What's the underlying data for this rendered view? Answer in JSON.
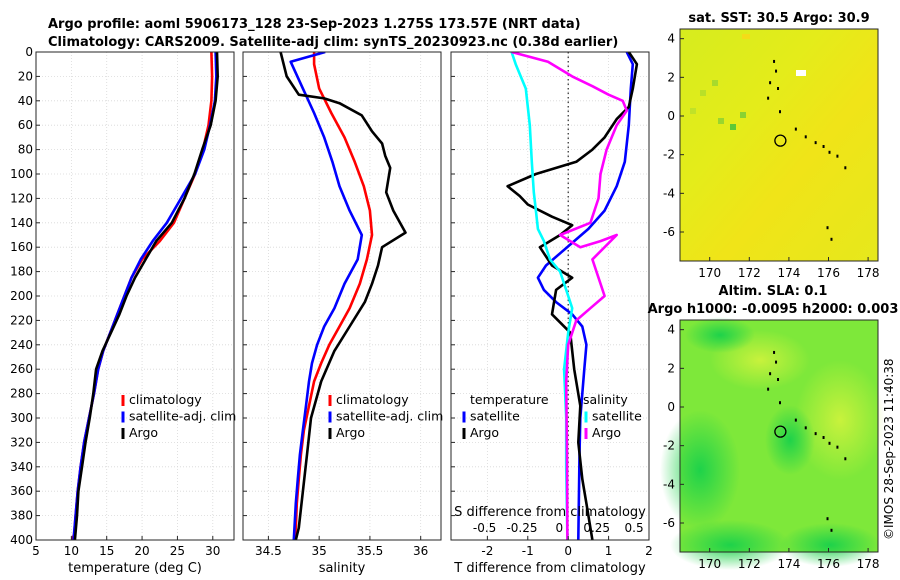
{
  "title_line1": "Argo profile: aoml 5906173_128 23-Sep-2023 1.275S 173.57E (NRT data)",
  "title_line2": "Climatology: CARS2009. Satellite-adj clim: synTS_20230923.nc (0.38d earlier)",
  "colors": {
    "climatology": "#ff0000",
    "satellite": "#0000ff",
    "argo": "#000000",
    "temp_diff": "#00ffff",
    "sal_diff": "#ff00ff"
  },
  "chart_data": [
    {
      "type": "line",
      "title": "",
      "xlabel": "temperature (deg C)",
      "ylabel": "",
      "xlim": [
        5,
        33
      ],
      "ylim": [
        400,
        0
      ],
      "xticks": [
        5,
        10,
        15,
        20,
        25,
        30
      ],
      "yticks": [
        0,
        20,
        40,
        60,
        80,
        100,
        120,
        140,
        160,
        180,
        200,
        220,
        240,
        260,
        280,
        300,
        320,
        340,
        360,
        380,
        400
      ],
      "legend": [
        "climatology",
        "satellite-adj. clim",
        "Argo"
      ],
      "series": [
        {
          "name": "climatology",
          "color": "#ff0000",
          "x": [
            29.8,
            29.9,
            29.8,
            29.4,
            28.6,
            27.5,
            26.0,
            24.5,
            22.5,
            20.0,
            18.5,
            17.5,
            16.5,
            15.5,
            14.5,
            13.8,
            13.2,
            12.5,
            11.8,
            11.3,
            10.9,
            10.6,
            10.4,
            10.1
          ],
          "y": [
            0,
            20,
            40,
            60,
            80,
            100,
            120,
            140,
            155,
            170,
            185,
            200,
            215,
            230,
            245,
            260,
            280,
            300,
            320,
            340,
            360,
            380,
            395,
            400
          ]
        },
        {
          "name": "satellite-adj. clim",
          "color": "#0000ff",
          "x": [
            30.4,
            30.5,
            30.3,
            29.6,
            28.8,
            27.5,
            25.5,
            23.5,
            21.5,
            19.8,
            18.5,
            17.5,
            16.5,
            15.5,
            14.5,
            13.8,
            13.2,
            12.5,
            11.8,
            11.3,
            10.9,
            10.6,
            10.3
          ],
          "y": [
            0,
            20,
            40,
            60,
            80,
            100,
            120,
            140,
            155,
            170,
            185,
            200,
            215,
            230,
            245,
            260,
            280,
            300,
            320,
            340,
            360,
            380,
            400
          ]
        },
        {
          "name": "Argo",
          "color": "#000000",
          "x": [
            30.6,
            30.7,
            30.4,
            29.7,
            28.5,
            27.4,
            26.0,
            24.2,
            22.0,
            20.5,
            19.0,
            17.8,
            16.8,
            15.6,
            14.4,
            13.5,
            13.1,
            12.6,
            12.0,
            11.5,
            11.0,
            10.8,
            10.5
          ],
          "y": [
            0,
            20,
            40,
            60,
            80,
            100,
            120,
            140,
            155,
            170,
            185,
            200,
            215,
            230,
            245,
            260,
            280,
            300,
            320,
            340,
            360,
            380,
            400
          ]
        }
      ]
    },
    {
      "type": "line",
      "title": "",
      "xlabel": "salinity",
      "ylabel": "",
      "xlim": [
        34.25,
        36.2
      ],
      "ylim": [
        400,
        0
      ],
      "xticks": [
        34.5,
        35,
        35.5,
        36
      ],
      "xtick_labels": [
        "34.5",
        "35",
        "35.5",
        "36"
      ],
      "legend": [
        "climatology",
        "satellite-adj. clim",
        "Argo"
      ],
      "series": [
        {
          "name": "climatology",
          "color": "#ff0000",
          "x": [
            34.95,
            34.95,
            35.0,
            35.12,
            35.25,
            35.35,
            35.44,
            35.5,
            35.52,
            35.47,
            35.4,
            35.3,
            35.2,
            35.1,
            35.02,
            34.95,
            34.9,
            34.85,
            34.82,
            34.8,
            34.78,
            34.77,
            34.76
          ],
          "y": [
            0,
            10,
            30,
            50,
            70,
            90,
            110,
            130,
            150,
            170,
            190,
            210,
            225,
            240,
            255,
            270,
            290,
            310,
            330,
            350,
            370,
            390,
            400
          ]
        },
        {
          "name": "satellite-adj. clim",
          "color": "#0000ff",
          "x": [
            35.06,
            34.72,
            34.84,
            34.95,
            35.05,
            35.13,
            35.2,
            35.3,
            35.42,
            35.38,
            35.25,
            35.15,
            35.05,
            34.98,
            34.93,
            34.9,
            34.87,
            34.84,
            34.81,
            34.79,
            34.77,
            34.75
          ],
          "y": [
            0,
            8,
            30,
            50,
            70,
            90,
            110,
            130,
            150,
            170,
            190,
            210,
            225,
            240,
            255,
            270,
            290,
            310,
            330,
            350,
            370,
            400
          ]
        },
        {
          "name": "Argo",
          "color": "#000000",
          "x": [
            34.62,
            34.68,
            34.8,
            35.05,
            35.2,
            35.42,
            35.52,
            35.62,
            35.65,
            35.7,
            35.66,
            35.73,
            35.85,
            35.62,
            35.58,
            35.52,
            35.45,
            35.3,
            35.15,
            35.02,
            34.92,
            34.88,
            34.84,
            34.8,
            34.77
          ],
          "y": [
            0,
            20,
            35,
            38,
            42,
            52,
            65,
            75,
            85,
            95,
            115,
            130,
            148,
            160,
            175,
            190,
            205,
            225,
            245,
            270,
            300,
            330,
            360,
            390,
            400
          ]
        }
      ]
    },
    {
      "type": "line",
      "title": "",
      "xlabel": "T difference from climatology",
      "ylabel": "",
      "xlim": [
        -2.9,
        2.0
      ],
      "ylim": [
        400,
        0
      ],
      "xticks": [
        -2,
        -1,
        0,
        1,
        2
      ],
      "secondary_xlabel": "S difference from climatology",
      "secondary_xtick_values": [
        -0.5,
        -0.25,
        0,
        0.25,
        0.5
      ],
      "secondary_xtick_labels": [
        "-0.5",
        "-0.25",
        "0",
        "0.25",
        "0.5"
      ],
      "legend_temperature": [
        "temperature",
        "satellite",
        "Argo"
      ],
      "legend_salinity": [
        "salinity",
        "satellite",
        "Argo"
      ],
      "series": [
        {
          "name": "temperature satellite",
          "color": "#0000ff",
          "x": [
            1.45,
            1.6,
            1.55,
            1.5,
            1.4,
            1.2,
            0.9,
            0.5,
            0.15,
            -0.2,
            -0.55,
            -0.75,
            -0.6,
            -0.3,
            0.1,
            0.35,
            0.45,
            0.4,
            0.35,
            0.3,
            0.28,
            0.25
          ],
          "y": [
            0,
            10,
            30,
            60,
            90,
            110,
            130,
            145,
            155,
            165,
            175,
            185,
            195,
            205,
            215,
            225,
            240,
            260,
            280,
            300,
            330,
            400
          ]
        },
        {
          "name": "temperature Argo",
          "color": "#000000",
          "x": [
            1.5,
            1.7,
            1.6,
            1.5,
            1.2,
            0.9,
            0.6,
            0.2,
            -0.3,
            -0.8,
            -1.5,
            -1.2,
            -1.0,
            -0.4,
            0.1,
            -0.2,
            -0.7,
            -0.4,
            0.1,
            -0.3,
            -0.4,
            0.05,
            0.15,
            0.3,
            0.25,
            0.35,
            0.45,
            0.55,
            0.6
          ],
          "y": [
            0,
            10,
            30,
            45,
            55,
            70,
            80,
            90,
            95,
            100,
            110,
            118,
            125,
            135,
            142,
            150,
            160,
            175,
            185,
            195,
            215,
            230,
            260,
            290,
            320,
            350,
            370,
            390,
            400
          ]
        },
        {
          "name": "salinity satellite",
          "color": "#00ffff",
          "x": [
            -1.4,
            -1.3,
            -1.05,
            -0.95,
            -0.9,
            -0.85,
            -0.8,
            -0.75,
            -0.6,
            -0.45,
            -0.2,
            -0.05,
            0.1,
            0.0,
            -0.1,
            -0.05,
            -0.05,
            -0.03,
            -0.02
          ],
          "y": [
            0,
            10,
            30,
            60,
            90,
            115,
            130,
            145,
            155,
            170,
            180,
            195,
            210,
            230,
            260,
            300,
            340,
            380,
            400
          ]
        },
        {
          "name": "salinity Argo",
          "color": "#ff00ff",
          "x": [
            -1.4,
            -0.5,
            0.1,
            0.6,
            1.0,
            1.35,
            1.45,
            1.2,
            0.95,
            0.8,
            0.75,
            0.55,
            -0.2,
            0.3,
            0.8,
            1.2,
            0.6,
            0.75,
            0.9,
            0.55,
            0.2,
            0.0,
            -0.05,
            -0.03,
            -0.02
          ],
          "y": [
            0,
            8,
            20,
            28,
            35,
            40,
            48,
            60,
            80,
            100,
            120,
            140,
            150,
            160,
            155,
            150,
            170,
            185,
            200,
            210,
            220,
            240,
            270,
            330,
            400
          ]
        }
      ]
    },
    {
      "type": "heatmap",
      "title": "sat. SST: 30.5 Argo: 30.9",
      "xlim": [
        168.5,
        178.5
      ],
      "ylim": [
        -7.5,
        4.5
      ],
      "xticks": [
        170,
        172,
        174,
        176,
        178
      ],
      "yticks": [
        -6,
        -4,
        -2,
        0,
        2,
        4
      ],
      "argo_position": {
        "lon": 173.57,
        "lat": -1.275
      }
    },
    {
      "type": "heatmap",
      "title_line1": "Altim. SLA: 0.1",
      "title_line2": "Argo h1000: -0.0095 h2000: 0.003",
      "xlim": [
        168.5,
        178.5
      ],
      "ylim": [
        -7.5,
        4.5
      ],
      "xticks": [
        170,
        172,
        174,
        176,
        178
      ],
      "yticks": [
        -6,
        -4,
        -2,
        0,
        2,
        4
      ],
      "argo_position": {
        "lon": 173.57,
        "lat": -1.275
      }
    }
  ],
  "watermark": "©IMOS 28-Sep-2023 11:40:38"
}
